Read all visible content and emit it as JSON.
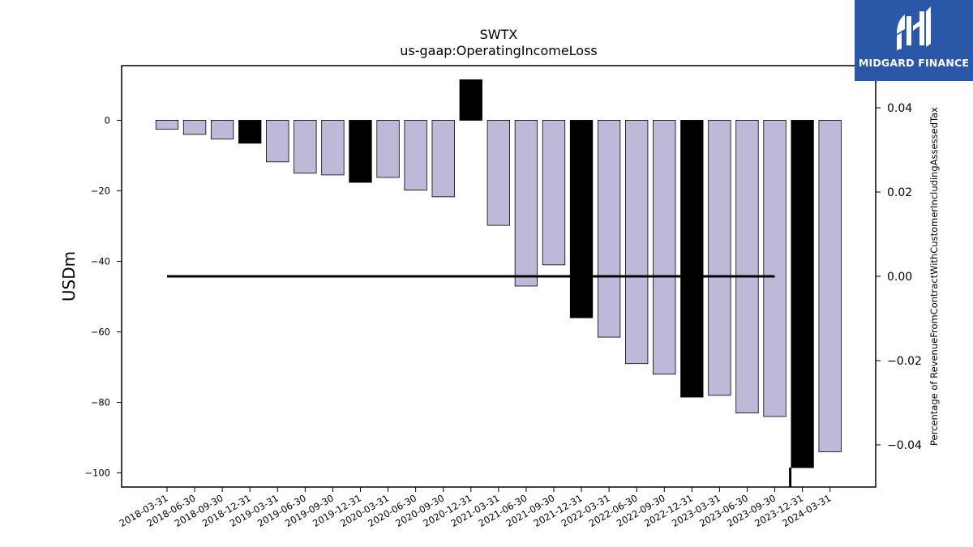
{
  "brand": {
    "name": "MIDGARD FINANCE",
    "color": "#2b57a8"
  },
  "chart_data": {
    "type": "bar",
    "title": "SWTX",
    "subtitle": "us-gaap:OperatingIncomeLoss",
    "ylabel": "USDm",
    "y2label": "Percentage of RevenueFromContractWithCustomerIncludingAssessedTax",
    "ylim": [
      -104,
      15.5
    ],
    "y2lim": [
      -0.05,
      0.05
    ],
    "yticks": [
      0,
      -20,
      -40,
      -60,
      -80,
      -100
    ],
    "y2ticks": [
      0.04,
      0.02,
      0.0,
      -0.02,
      -0.04
    ],
    "y2tick_labels": [
      "0.04",
      "0.02",
      "0.00",
      "−0.02",
      "−0.04"
    ],
    "categories": [
      "2018-03-31",
      "2018-06-30",
      "2018-09-30",
      "2018-12-31",
      "2019-03-31",
      "2019-06-30",
      "2019-09-30",
      "2019-12-31",
      "2020-03-31",
      "2020-06-30",
      "2020-09-30",
      "2020-12-31",
      "2021-03-31",
      "2021-06-30",
      "2021-09-30",
      "2021-12-31",
      "2022-03-31",
      "2022-06-30",
      "2022-09-30",
      "2022-12-31",
      "2023-03-31",
      "2023-06-30",
      "2023-09-30",
      "2023-12-31",
      "2024-03-31"
    ],
    "series": [
      {
        "values": [
          -2.5,
          -4.0,
          -5.3,
          -6.5,
          -11.8,
          -15.0,
          -15.5,
          -17.6,
          -16.2,
          -19.8,
          -21.7,
          11.5,
          -29.8,
          -47.0,
          -41.0,
          -56.0,
          -61.5,
          -69.0,
          -72.0,
          -78.5,
          -78.0,
          -83.0,
          -84.0,
          -98.5,
          -94.0
        ],
        "highlight": [
          false,
          false,
          false,
          true,
          false,
          false,
          false,
          true,
          false,
          false,
          false,
          true,
          false,
          false,
          false,
          true,
          false,
          false,
          false,
          true,
          false,
          false,
          false,
          true,
          false
        ]
      }
    ],
    "line": {
      "x_start": "2018-03-31",
      "x_end": "2023-09-30",
      "value": 0.0,
      "drop_to": -0.05
    },
    "colors": {
      "bar": "#bdbad9",
      "highlight": "#000000",
      "line": "#000000"
    },
    "grid": false
  }
}
